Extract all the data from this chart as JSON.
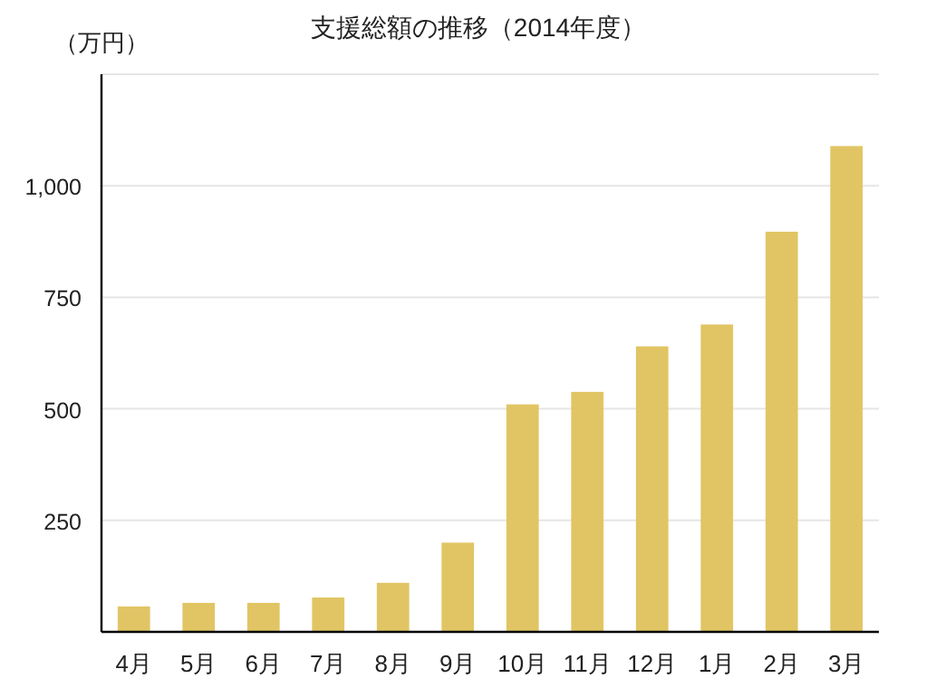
{
  "chart_data": {
    "type": "bar",
    "title": "支援総額の推移（2014年度）",
    "ylabel": "（万円）",
    "categories": [
      "4月",
      "5月",
      "6月",
      "7月",
      "8月",
      "9月",
      "10月",
      "11月",
      "12月",
      "1月",
      "2月",
      "3月"
    ],
    "values": [
      57,
      65,
      65,
      77,
      110,
      200,
      510,
      538,
      640,
      689,
      897,
      1089
    ],
    "color": "#e1c564",
    "ylim": [
      0,
      1250
    ],
    "yticks": [
      {
        "value": 250,
        "label": "250"
      },
      {
        "value": 500,
        "label": "500"
      },
      {
        "value": 750,
        "label": "750"
      },
      {
        "value": 1000,
        "label": "1,000"
      },
      {
        "value": 1250,
        "label": null
      }
    ],
    "grid": "y"
  }
}
